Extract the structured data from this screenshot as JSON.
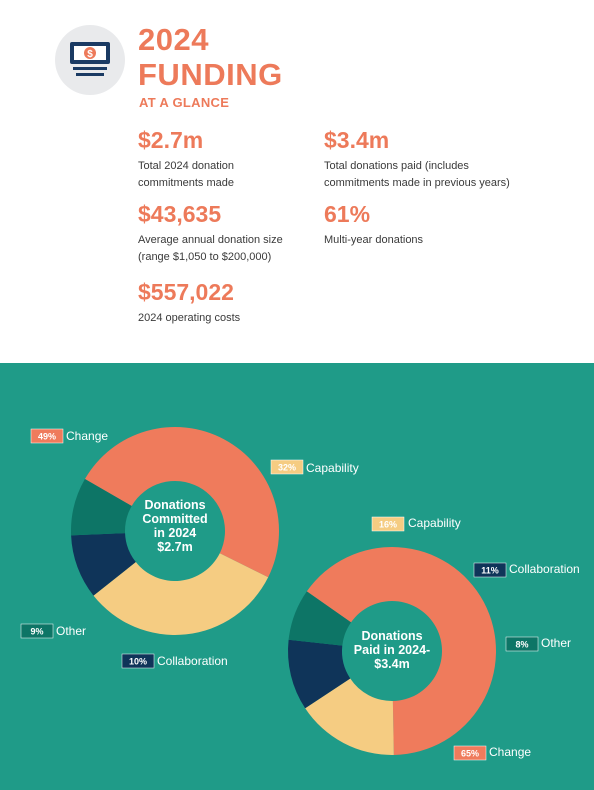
{
  "header": {
    "title_line1": "2024",
    "title_line2": "FUNDING",
    "subtitle": "AT A GLANCE",
    "icon": "money-icon"
  },
  "stats": [
    {
      "value": "$2.7m",
      "desc_lines": [
        "Total 2024 donation",
        "commitments made"
      ]
    },
    {
      "value": "$3.4m",
      "desc_lines": [
        "Total donations paid (includes",
        "commitments made in previous years)"
      ]
    },
    {
      "value": "$43,635",
      "desc_lines": [
        "Average annual donation size",
        "(range $1,050 to $200,000)"
      ]
    },
    {
      "value": "61%",
      "desc_lines": [
        "Multi-year donations"
      ]
    },
    {
      "value": "$557,022",
      "desc_lines": [
        "2024 operating costs"
      ]
    }
  ],
  "colors": {
    "accent": "#ed7a5a",
    "teal_bg": "#1f9b88",
    "change": "#ef7b5c",
    "capability": "#f5cc82",
    "collaboration": "#0f3459",
    "other": "#0d7566",
    "icon_navy": "#1a3a63"
  },
  "chart_data": [
    {
      "type": "pie",
      "center_label": [
        "Donations",
        "Committed",
        "in 2024",
        "$2.7m"
      ],
      "slices": [
        {
          "name": "Change",
          "value": 49,
          "label": "49%"
        },
        {
          "name": "Capability",
          "value": 32,
          "label": "32%"
        },
        {
          "name": "Collaboration",
          "value": 10,
          "label": "10%"
        },
        {
          "name": "Other",
          "value": 9,
          "label": "9%"
        }
      ]
    },
    {
      "type": "pie",
      "center_label": [
        "Donations",
        "Paid in 2024-",
        "$3.4m"
      ],
      "slices": [
        {
          "name": "Change",
          "value": 65,
          "label": "65%"
        },
        {
          "name": "Capability",
          "value": 16,
          "label": "16%"
        },
        {
          "name": "Collaboration",
          "value": 11,
          "label": "11%"
        },
        {
          "name": "Other",
          "value": 8,
          "label": "8%"
        }
      ]
    }
  ]
}
